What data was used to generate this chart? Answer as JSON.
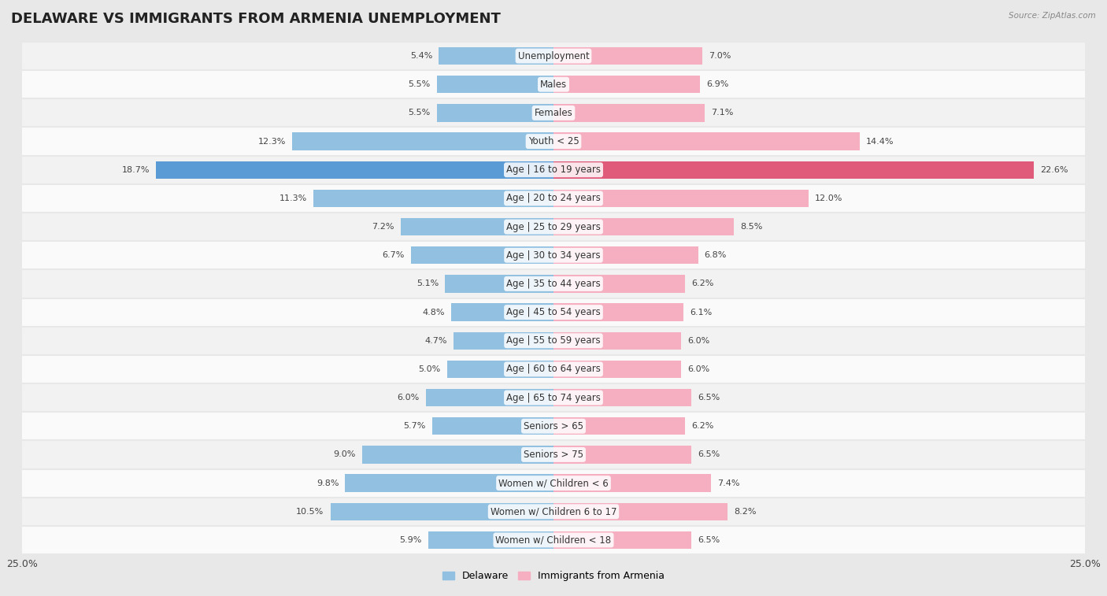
{
  "title": "DELAWARE VS IMMIGRANTS FROM ARMENIA UNEMPLOYMENT",
  "source": "Source: ZipAtlas.com",
  "categories": [
    "Unemployment",
    "Males",
    "Females",
    "Youth < 25",
    "Age | 16 to 19 years",
    "Age | 20 to 24 years",
    "Age | 25 to 29 years",
    "Age | 30 to 34 years",
    "Age | 35 to 44 years",
    "Age | 45 to 54 years",
    "Age | 55 to 59 years",
    "Age | 60 to 64 years",
    "Age | 65 to 74 years",
    "Seniors > 65",
    "Seniors > 75",
    "Women w/ Children < 6",
    "Women w/ Children 6 to 17",
    "Women w/ Children < 18"
  ],
  "delaware": [
    5.4,
    5.5,
    5.5,
    12.3,
    18.7,
    11.3,
    7.2,
    6.7,
    5.1,
    4.8,
    4.7,
    5.0,
    6.0,
    5.7,
    9.0,
    9.8,
    10.5,
    5.9
  ],
  "armenia": [
    7.0,
    6.9,
    7.1,
    14.4,
    22.6,
    12.0,
    8.5,
    6.8,
    6.2,
    6.1,
    6.0,
    6.0,
    6.5,
    6.2,
    6.5,
    7.4,
    8.2,
    6.5
  ],
  "delaware_color": "#92c0e0",
  "armenia_color": "#f5afc0",
  "highlight_delaware_color": "#5b9bd5",
  "highlight_armenia_color": "#e05a7a",
  "axis_max": 25.0,
  "background_color": "#e8e8e8",
  "row_bg_odd": "#f2f2f2",
  "row_bg_even": "#fafafa",
  "bar_height": 0.62,
  "title_fontsize": 13,
  "label_fontsize": 8.5,
  "value_fontsize": 8.0
}
